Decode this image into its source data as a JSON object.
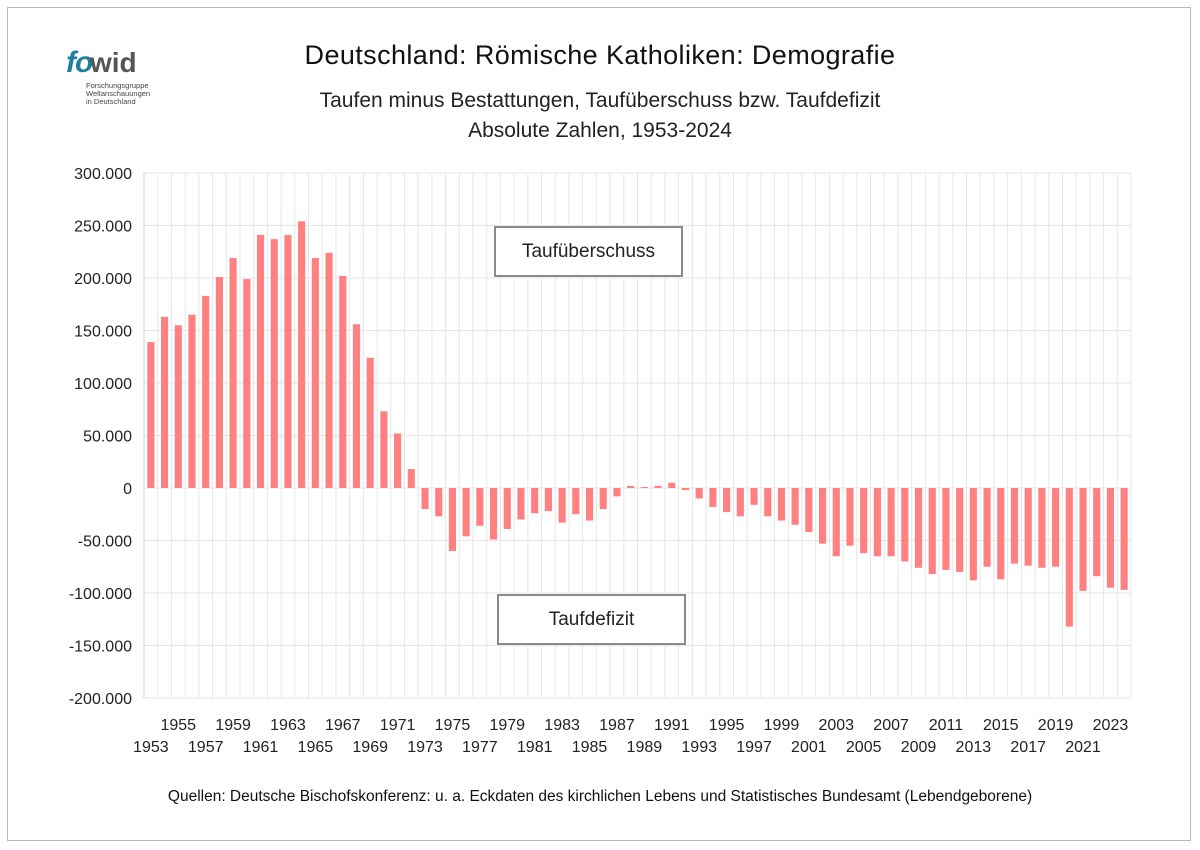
{
  "title": "Deutschland: Römische Katholiken: Demografie",
  "subtitle_line1": "Taufen minus Bestattungen, Taufüberschuss bzw. Taufdefizit",
  "subtitle_line2": "Absolute Zahlen, 1953-2024",
  "logo": {
    "fo": "fo",
    "wid": "wid",
    "line1": "Forschungsgruppe",
    "line2": "Weltanschauungen",
    "line3": "in Deutschland"
  },
  "annotations": {
    "positive": "Taufüberschuss",
    "negative": "Taufdefizit"
  },
  "source": "Quellen: Deutsche Bischofskonferenz: u. a.  Eckdaten des kirchlichen Lebens und Statistisches Bundesamt (Lebendgeborene)",
  "colors": {
    "bar": "#ff8080",
    "grid": "#e6e6e6",
    "axis": "#cfcfcf",
    "logo_accent": "#1f7fa0"
  },
  "chart_data": {
    "type": "bar",
    "title": "Deutschland: Römische Katholiken: Demografie",
    "xlabel": "",
    "ylabel": "",
    "ylim": [
      -200000,
      300000
    ],
    "y_ticks": [
      300000,
      250000,
      200000,
      150000,
      100000,
      50000,
      0,
      -50000,
      -100000,
      -150000,
      -200000
    ],
    "y_tick_labels": [
      "300.000",
      "250.000",
      "200.000",
      "150.000",
      "100.000",
      "50.000",
      "0",
      "-50.000",
      "-100.000",
      "-150.000",
      "-200.000"
    ],
    "grid": true,
    "categories": [
      "1953",
      "1954",
      "1955",
      "1956",
      "1957",
      "1958",
      "1959",
      "1960",
      "1961",
      "1962",
      "1963",
      "1964",
      "1965",
      "1966",
      "1967",
      "1968",
      "1969",
      "1970",
      "1971",
      "1972",
      "1973",
      "1974",
      "1975",
      "1976",
      "1977",
      "1978",
      "1979",
      "1980",
      "1981",
      "1982",
      "1983",
      "1984",
      "1985",
      "1986",
      "1987",
      "1988",
      "1989",
      "1990",
      "1991",
      "1992",
      "1993",
      "1994",
      "1995",
      "1996",
      "1997",
      "1998",
      "1999",
      "2000",
      "2001",
      "2002",
      "2003",
      "2004",
      "2005",
      "2006",
      "2007",
      "2008",
      "2009",
      "2010",
      "2011",
      "2012",
      "2013",
      "2014",
      "2015",
      "2016",
      "2017",
      "2018",
      "2019",
      "2020",
      "2021",
      "2022",
      "2023",
      "2024"
    ],
    "values": [
      139000,
      163000,
      155000,
      165000,
      183000,
      201000,
      219000,
      199000,
      241000,
      237000,
      241000,
      254000,
      219000,
      224000,
      202000,
      156000,
      124000,
      73000,
      52000,
      18000,
      -20000,
      -27000,
      -60000,
      -46000,
      -36000,
      -49000,
      -39000,
      -30000,
      -24000,
      -22000,
      -33000,
      -25000,
      -31000,
      -20000,
      -8000,
      2000,
      1000,
      2000,
      5000,
      -2000,
      -10000,
      -18000,
      -23000,
      -27000,
      -16000,
      -27000,
      -31000,
      -35000,
      -42000,
      -53000,
      -65000,
      -55000,
      -62000,
      -65000,
      -65000,
      -70000,
      -76000,
      -82000,
      -78000,
      -80000,
      -88000,
      -75000,
      -87000,
      -72000,
      -74000,
      -76000,
      -75000,
      -132000,
      -98000,
      -84000,
      -95000,
      -97000
    ],
    "x_tick_labels_upper": [
      "1955",
      "1959",
      "1963",
      "1967",
      "1971",
      "1975",
      "1979",
      "1983",
      "1987",
      "1991",
      "1995",
      "1999",
      "2003",
      "2007",
      "2011",
      "2015",
      "2019",
      "2023"
    ],
    "x_tick_labels_lower": [
      "1953",
      "1957",
      "1961",
      "1965",
      "1969",
      "1973",
      "1977",
      "1981",
      "1985",
      "1989",
      "1993",
      "1997",
      "2001",
      "2005",
      "2009",
      "2013",
      "2017",
      "2021"
    ]
  }
}
